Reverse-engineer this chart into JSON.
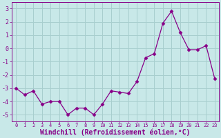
{
  "x": [
    0,
    1,
    2,
    3,
    4,
    5,
    6,
    7,
    8,
    9,
    10,
    11,
    12,
    13,
    14,
    15,
    16,
    17,
    18,
    19,
    20,
    21,
    22,
    23
  ],
  "y": [
    -3.0,
    -3.5,
    -3.2,
    -4.2,
    -4.0,
    -4.0,
    -5.0,
    -4.5,
    -4.5,
    -5.0,
    -4.2,
    -3.2,
    -3.3,
    -3.4,
    -2.5,
    -0.7,
    -0.4,
    1.9,
    2.8,
    1.2,
    -0.1,
    -0.1,
    0.2,
    -2.3
  ],
  "line_color": "#880088",
  "marker": "D",
  "marker_size": 2.5,
  "bg_color": "#c8e8e8",
  "grid_color": "#a8cece",
  "xlabel": "Windchill (Refroidissement éolien,°C)",
  "xlabel_fontsize": 7,
  "ylabel_ticks": [
    -5,
    -4,
    -3,
    -2,
    -1,
    0,
    1,
    2,
    3
  ],
  "xtick_labels": [
    "0",
    "1",
    "2",
    "3",
    "4",
    "5",
    "6",
    "7",
    "8",
    "9",
    "10",
    "11",
    "12",
    "13",
    "14",
    "15",
    "16",
    "17",
    "18",
    "19",
    "20",
    "21",
    "22",
    "23"
  ],
  "ylim": [
    -5.5,
    3.5
  ],
  "xlim": [
    -0.5,
    23.5
  ]
}
